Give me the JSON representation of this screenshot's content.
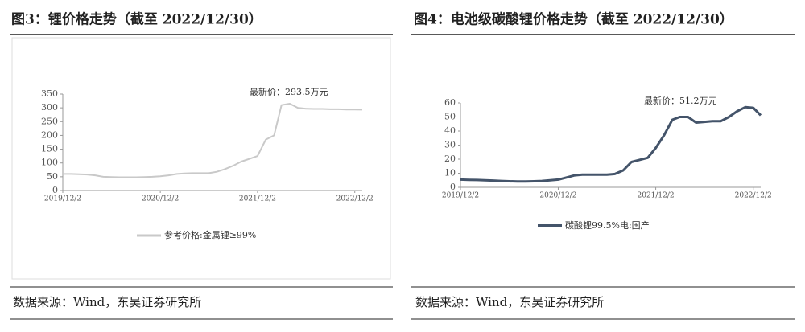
{
  "chart_data": [
    {
      "type": "line",
      "title": "图3：锂价格走势（截至 2022/12/30）",
      "annotation": "最新价：293.5万元",
      "source": "数据来源：Wind，东吴证券研究所",
      "x": [
        "2019/12/2",
        "2020/1/2",
        "2020/2/2",
        "2020/3/2",
        "2020/4/2",
        "2020/5/2",
        "2020/6/2",
        "2020/7/2",
        "2020/8/2",
        "2020/9/2",
        "2020/10/2",
        "2020/11/2",
        "2020/12/2",
        "2021/1/2",
        "2021/2/2",
        "2021/3/2",
        "2021/4/2",
        "2021/5/2",
        "2021/6/2",
        "2021/7/2",
        "2021/8/2",
        "2021/9/2",
        "2021/10/2",
        "2021/11/2",
        "2021/12/2",
        "2022/1/2",
        "2022/2/2",
        "2022/3/2",
        "2022/4/2",
        "2022/5/2",
        "2022/6/2",
        "2022/7/2",
        "2022/8/2",
        "2022/9/2",
        "2022/10/2",
        "2022/11/2",
        "2022/12/2",
        "2022/12/30"
      ],
      "series": [
        {
          "name": "参考价格:金属锂≥99%",
          "color": "#c9c9c9",
          "values": [
            60,
            60,
            59,
            58,
            55,
            50,
            49,
            48,
            48,
            48,
            49,
            50,
            52,
            55,
            60,
            62,
            63,
            63,
            63,
            68,
            78,
            90,
            105,
            115,
            125,
            185,
            200,
            310,
            315,
            300,
            297,
            296,
            296,
            295,
            295,
            294,
            294,
            293.5
          ]
        }
      ],
      "xlim": [
        "2019/12/2",
        "2022/12/30"
      ],
      "xticks": [
        "2019/12/2",
        "2020/12/2",
        "2021/12/2",
        "2022/12/2"
      ],
      "ylim": [
        0,
        350
      ],
      "yticks": [
        0,
        50,
        100,
        150,
        200,
        250,
        300,
        350
      ]
    },
    {
      "type": "line",
      "title": "图4：电池级碳酸锂价格走势（截至 2022/12/30）",
      "annotation": "最新价：51.2万元",
      "source": "数据来源：Wind，东吴证券研究所",
      "x": [
        "2019/12/2",
        "2020/1/2",
        "2020/2/2",
        "2020/3/2",
        "2020/4/2",
        "2020/5/2",
        "2020/6/2",
        "2020/7/2",
        "2020/8/2",
        "2020/9/2",
        "2020/10/2",
        "2020/11/2",
        "2020/12/2",
        "2021/1/2",
        "2021/2/2",
        "2021/3/2",
        "2021/4/2",
        "2021/5/2",
        "2021/6/2",
        "2021/7/2",
        "2021/8/2",
        "2021/9/2",
        "2021/10/2",
        "2021/11/2",
        "2021/12/2",
        "2022/1/2",
        "2022/2/2",
        "2022/3/2",
        "2022/4/2",
        "2022/5/2",
        "2022/6/2",
        "2022/7/2",
        "2022/8/2",
        "2022/9/2",
        "2022/10/2",
        "2022/11/2",
        "2022/12/2",
        "2022/12/30"
      ],
      "series": [
        {
          "name": "碳酸锂99.5%电:国产",
          "color": "#44546a",
          "values": [
            5.5,
            5.3,
            5.2,
            5,
            4.8,
            4.5,
            4.3,
            4.2,
            4.2,
            4.3,
            4.5,
            5,
            5.5,
            7,
            8.5,
            9,
            9,
            9,
            9,
            9.5,
            12,
            18,
            19.5,
            21,
            28,
            37,
            48,
            50,
            50,
            46,
            46.5,
            47,
            47,
            50,
            54,
            57,
            56.5,
            51.2
          ]
        }
      ],
      "xlim": [
        "2019/12/2",
        "2022/12/30"
      ],
      "xticks": [
        "2019/12/2",
        "2020/12/2",
        "2021/12/2",
        "2022/12/2"
      ],
      "ylim": [
        0,
        60
      ],
      "yticks": [
        0,
        10,
        20,
        30,
        40,
        50,
        60
      ]
    }
  ]
}
